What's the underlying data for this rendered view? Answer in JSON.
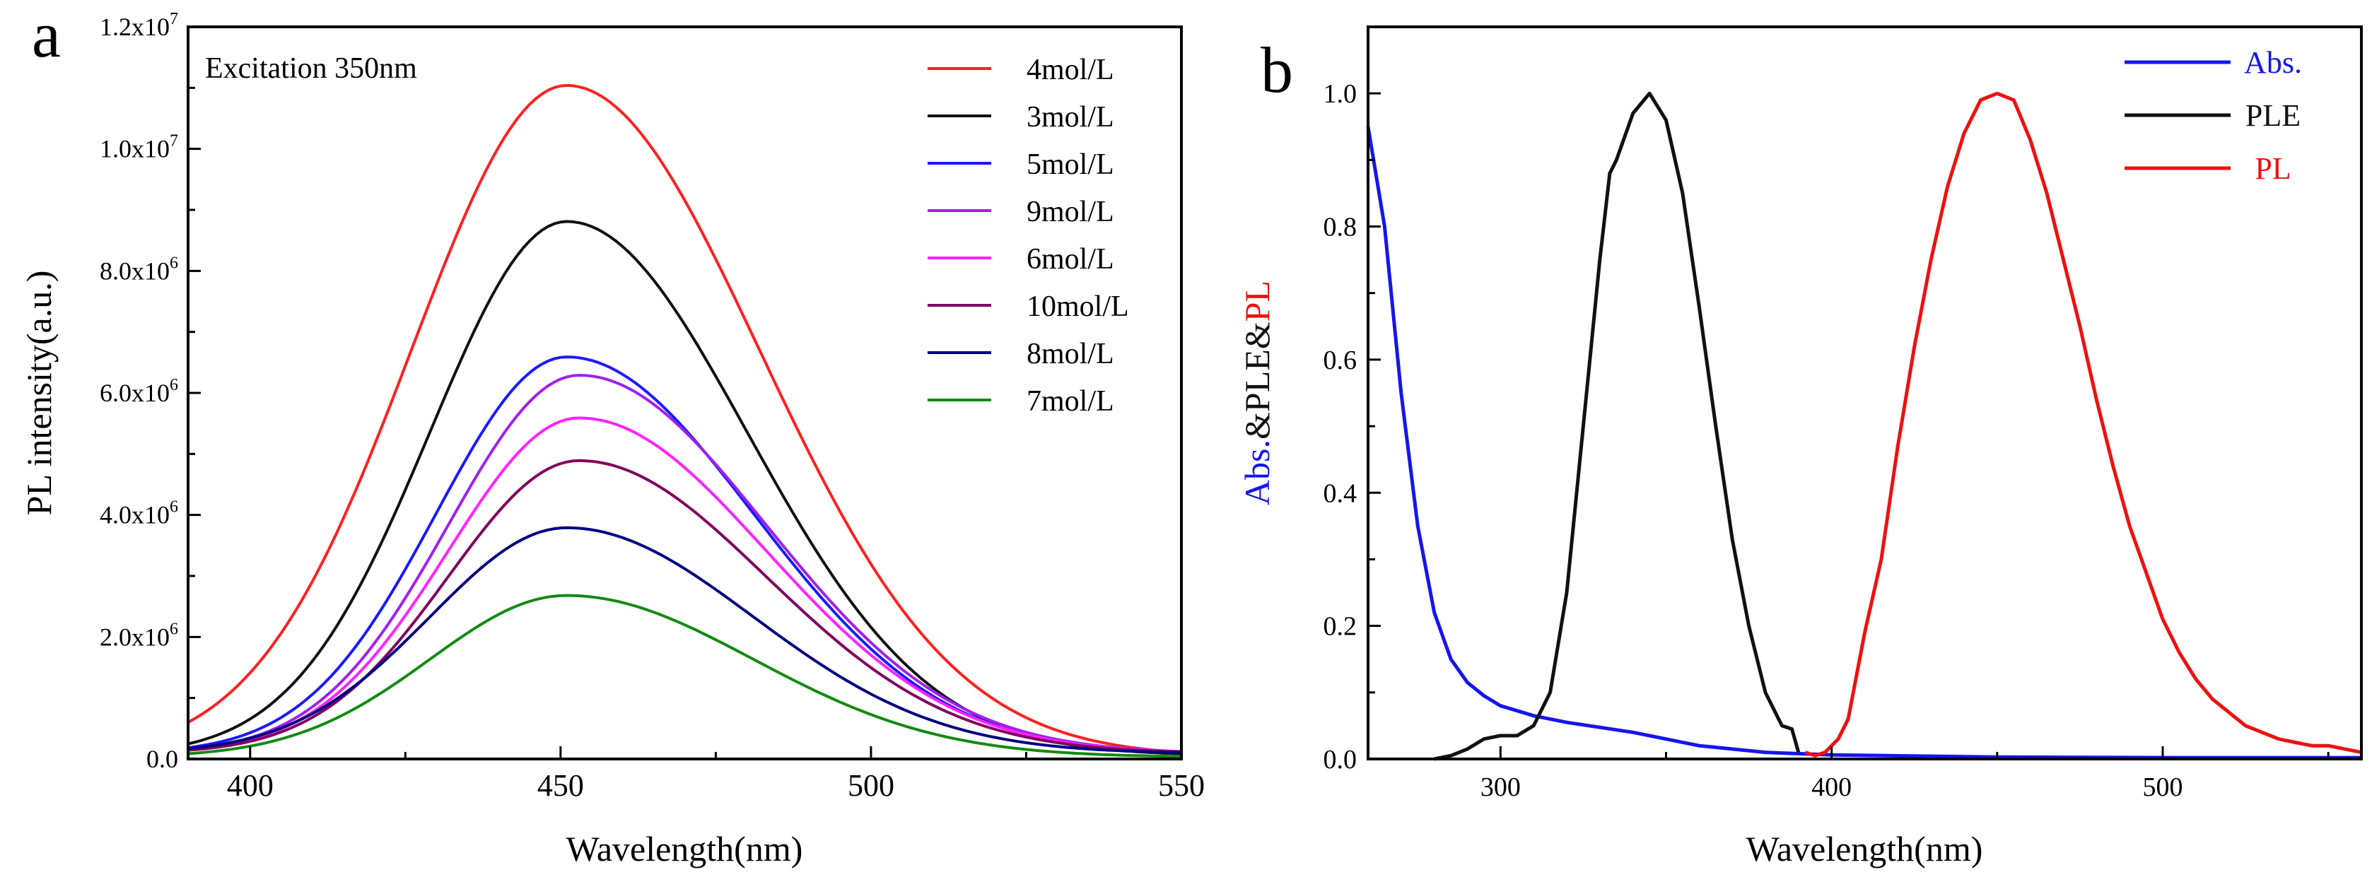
{
  "chart_data": [
    {
      "panel_label": "a",
      "type": "line",
      "annotation": "Excitation 350nm",
      "xlabel": "Wavelength(nm)",
      "ylabel": "PL intensity(a.u.)",
      "xlim": [
        390,
        550
      ],
      "ylim": [
        0,
        12000000
      ],
      "xticks": [
        400,
        450,
        500,
        550
      ],
      "xtick_labels": [
        "400",
        "450",
        "500",
        "550"
      ],
      "yticks": [
        0,
        2000000,
        4000000,
        6000000,
        8000000,
        10000000,
        12000000
      ],
      "ytick_labels": [
        {
          "mant": "0.0",
          "exp": ""
        },
        {
          "mant": "2.0x10",
          "exp": "6"
        },
        {
          "mant": "4.0x10",
          "exp": "6"
        },
        {
          "mant": "6.0x10",
          "exp": "6"
        },
        {
          "mant": "8.0x10",
          "exp": "6"
        },
        {
          "mant": "1.0x10",
          "exp": "7"
        },
        {
          "mant": "1.2x10",
          "exp": "7"
        }
      ],
      "legend_position": "top-right",
      "series": [
        {
          "name": "4mol/L",
          "color": "#ff2020",
          "peak": 11000000,
          "center": 451,
          "sigma_left": 25,
          "sigma_right": 31,
          "base": 40000
        },
        {
          "name": "3mol/L",
          "color": "#111111",
          "peak": 8750000,
          "center": 451,
          "sigma_left": 22,
          "sigma_right": 29,
          "base": 60000
        },
        {
          "name": "5mol/L",
          "color": "#1a1aff",
          "peak": 6500000,
          "center": 451,
          "sigma_left": 21,
          "sigma_right": 30,
          "base": 90000
        },
        {
          "name": "9mol/L",
          "color": "#a020f0",
          "peak": 6200000,
          "center": 453,
          "sigma_left": 21,
          "sigma_right": 30,
          "base": 90000
        },
        {
          "name": "6mol/L",
          "color": "#ff22ff",
          "peak": 5500000,
          "center": 453,
          "sigma_left": 21,
          "sigma_right": 30,
          "base": 90000
        },
        {
          "name": "10mol/L",
          "color": "#800060",
          "peak": 4800000,
          "center": 453,
          "sigma_left": 21,
          "sigma_right": 30,
          "base": 90000
        },
        {
          "name": "8mol/L",
          "color": "#000080",
          "peak": 3700000,
          "center": 451,
          "sigma_left": 22,
          "sigma_right": 30,
          "base": 90000
        },
        {
          "name": "7mol/L",
          "color": "#138a13",
          "peak": 2650000,
          "center": 451,
          "sigma_left": 22,
          "sigma_right": 30,
          "base": 30000
        }
      ]
    },
    {
      "panel_label": "b",
      "type": "line",
      "xlabel": "Wavelength(nm)",
      "ylabel_parts": [
        {
          "text": "Abs.",
          "color": "#1515ee"
        },
        {
          "text": "&PLE&",
          "color": "#111111"
        },
        {
          "text": "PL",
          "color": "#ee1111"
        }
      ],
      "xlim": [
        260,
        560
      ],
      "ylim": [
        0,
        1.1
      ],
      "xticks": [
        300,
        400,
        500
      ],
      "xtick_labels": [
        "300",
        "400",
        "500"
      ],
      "yticks": [
        0,
        0.2,
        0.4,
        0.6,
        0.8,
        1.0
      ],
      "ytick_labels": [
        "0.0",
        "0.2",
        "0.4",
        "0.6",
        "0.8",
        "1.0"
      ],
      "legend_position": "top-right",
      "series": [
        {
          "name": "Abs.",
          "color": "#1515ee",
          "x": [
            260,
            265,
            270,
            275,
            280,
            285,
            290,
            295,
            300,
            310,
            320,
            340,
            360,
            380,
            400,
            450,
            500,
            560
          ],
          "y": [
            0.95,
            0.8,
            0.55,
            0.35,
            0.22,
            0.15,
            0.115,
            0.095,
            0.08,
            0.065,
            0.055,
            0.04,
            0.02,
            0.01,
            0.006,
            0.003,
            0.002,
            0.002
          ]
        },
        {
          "name": "PLE",
          "color": "#111111",
          "x": [
            280,
            285,
            290,
            295,
            300,
            305,
            310,
            315,
            320,
            325,
            330,
            333,
            335,
            340,
            345,
            350,
            355,
            360,
            365,
            370,
            375,
            380,
            385,
            388,
            390
          ],
          "y": [
            0.0,
            0.005,
            0.015,
            0.03,
            0.035,
            0.035,
            0.05,
            0.1,
            0.25,
            0.5,
            0.75,
            0.88,
            0.9,
            0.97,
            1.0,
            0.96,
            0.85,
            0.68,
            0.5,
            0.33,
            0.2,
            0.1,
            0.05,
            0.045,
            0.01
          ]
        },
        {
          "name": "PL",
          "color": "#ee1111",
          "x": [
            392,
            395,
            398,
            402,
            405,
            410,
            415,
            420,
            425,
            430,
            435,
            440,
            445,
            450,
            455,
            460,
            465,
            470,
            475,
            480,
            485,
            490,
            495,
            500,
            505,
            510,
            515,
            520,
            525,
            530,
            535,
            540,
            545,
            550,
            555,
            560
          ],
          "y": [
            0.01,
            0.005,
            0.01,
            0.03,
            0.06,
            0.19,
            0.3,
            0.47,
            0.62,
            0.75,
            0.86,
            0.94,
            0.99,
            1.0,
            0.99,
            0.93,
            0.85,
            0.75,
            0.65,
            0.54,
            0.44,
            0.35,
            0.28,
            0.21,
            0.16,
            0.12,
            0.09,
            0.07,
            0.05,
            0.04,
            0.03,
            0.025,
            0.02,
            0.02,
            0.015,
            0.01
          ]
        }
      ]
    }
  ]
}
